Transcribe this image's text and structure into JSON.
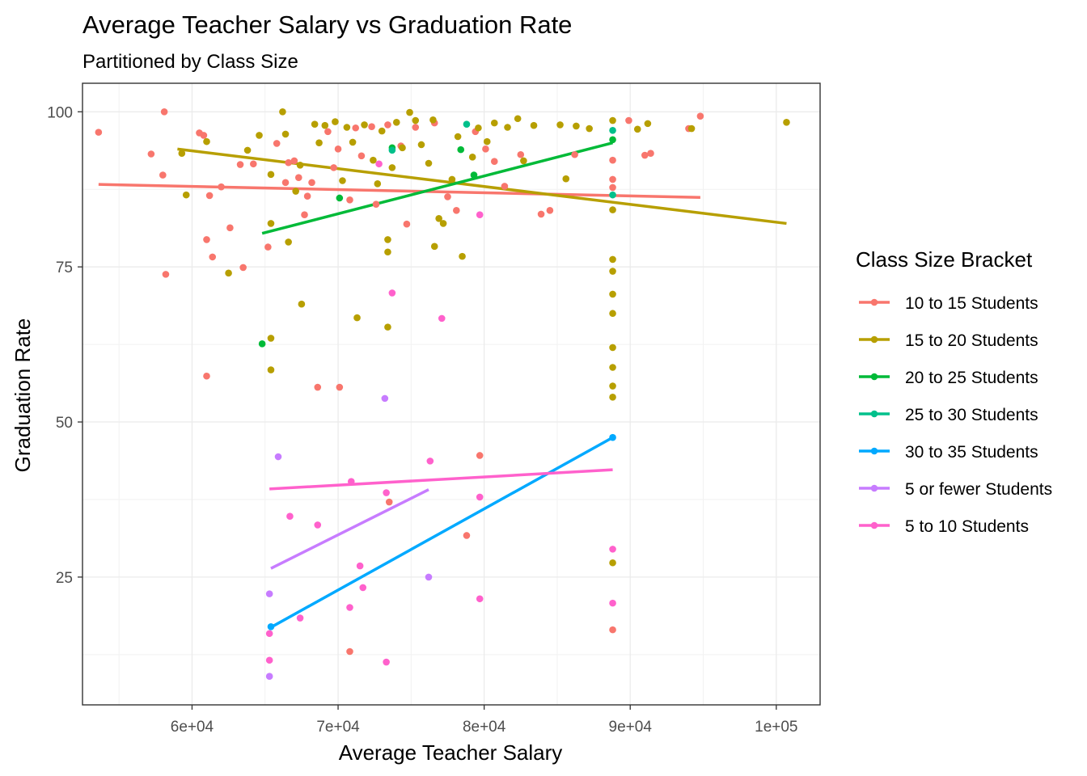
{
  "chart_data": {
    "type": "scatter",
    "title": "Average Teacher Salary vs Graduation Rate",
    "subtitle": "Partitioned by Class Size",
    "xlabel": "Average Teacher Salary",
    "ylabel": "Graduation Rate",
    "xlim": [
      52500,
      103000
    ],
    "ylim": [
      4.4,
      104.6
    ],
    "x_ticks": [
      60000,
      70000,
      80000,
      90000,
      100000
    ],
    "x_tick_labels": [
      "6e+04",
      "7e+04",
      "8e+04",
      "9e+04",
      "1e+05"
    ],
    "y_ticks": [
      25,
      50,
      75,
      100
    ],
    "y_tick_labels": [
      "25",
      "50",
      "75",
      "100"
    ],
    "grid": true,
    "legend": {
      "title": "Class Size Bracket",
      "position": "right"
    },
    "series": [
      {
        "name": "10 to 15 Students",
        "color": "#f8766d",
        "points": [
          [
            53600,
            96.7
          ],
          [
            57200,
            93.2
          ],
          [
            58100,
            100
          ],
          [
            58200,
            73.8
          ],
          [
            58000,
            89.8
          ],
          [
            60500,
            96.6
          ],
          [
            60800,
            96.2
          ],
          [
            61200,
            86.5
          ],
          [
            61400,
            76.6
          ],
          [
            61000,
            57.4
          ],
          [
            61000,
            79.4
          ],
          [
            62000,
            87.9
          ],
          [
            62600,
            81.3
          ],
          [
            63300,
            91.5
          ],
          [
            63500,
            74.9
          ],
          [
            64200,
            91.6
          ],
          [
            65200,
            78.2
          ],
          [
            65800,
            94.9
          ],
          [
            66400,
            88.6
          ],
          [
            66600,
            91.8
          ],
          [
            67000,
            92.1
          ],
          [
            67300,
            89.4
          ],
          [
            67700,
            83.4
          ],
          [
            67900,
            86.4
          ],
          [
            68200,
            88.6
          ],
          [
            68600,
            55.6
          ],
          [
            69300,
            96.8
          ],
          [
            69700,
            91.0
          ],
          [
            70000,
            94.0
          ],
          [
            70100,
            55.6
          ],
          [
            70800,
            85.8
          ],
          [
            70800,
            13.0
          ],
          [
            71200,
            97.4
          ],
          [
            71600,
            92.9
          ],
          [
            72300,
            97.6
          ],
          [
            72600,
            85.1
          ],
          [
            73400,
            97.9
          ],
          [
            73500,
            37.1
          ],
          [
            74300,
            94.5
          ],
          [
            74700,
            81.9
          ],
          [
            75300,
            97.5
          ],
          [
            76600,
            98.2
          ],
          [
            77500,
            86.3
          ],
          [
            78100,
            84.1
          ],
          [
            78800,
            31.7
          ],
          [
            79400,
            96.8
          ],
          [
            79700,
            44.6
          ],
          [
            80100,
            94.0
          ],
          [
            80700,
            92.0
          ],
          [
            81400,
            88.0
          ],
          [
            82500,
            93.1
          ],
          [
            83900,
            83.5
          ],
          [
            84500,
            84.1
          ],
          [
            86200,
            93.1
          ],
          [
            88800,
            92.2
          ],
          [
            88800,
            89.1
          ],
          [
            88800,
            87.8
          ],
          [
            88800,
            16.5
          ],
          [
            89900,
            98.6
          ],
          [
            91000,
            93.0
          ],
          [
            91400,
            93.3
          ],
          [
            94000,
            97.3
          ],
          [
            94800,
            99.3
          ]
        ],
        "trend": [
          [
            53600,
            88.3
          ],
          [
            94800,
            86.2
          ]
        ]
      },
      {
        "name": "15 to 20 Students",
        "color": "#b79f00",
        "points": [
          [
            59300,
            93.3
          ],
          [
            59600,
            86.6
          ],
          [
            61000,
            95.2
          ],
          [
            62500,
            74.0
          ],
          [
            63800,
            93.8
          ],
          [
            64600,
            96.2
          ],
          [
            65400,
            89.9
          ],
          [
            65400,
            82.0
          ],
          [
            65400,
            63.5
          ],
          [
            65400,
            58.4
          ],
          [
            66200,
            100
          ],
          [
            66400,
            96.4
          ],
          [
            66600,
            79.0
          ],
          [
            67100,
            87.2
          ],
          [
            67400,
            91.4
          ],
          [
            67500,
            69.0
          ],
          [
            68400,
            98.0
          ],
          [
            68700,
            95.0
          ],
          [
            69100,
            97.8
          ],
          [
            69800,
            98.4
          ],
          [
            70300,
            88.9
          ],
          [
            70600,
            97.5
          ],
          [
            71000,
            95.1
          ],
          [
            71300,
            66.8
          ],
          [
            71800,
            97.9
          ],
          [
            72400,
            92.2
          ],
          [
            72700,
            88.4
          ],
          [
            73000,
            96.9
          ],
          [
            73400,
            79.4
          ],
          [
            73400,
            77.4
          ],
          [
            73400,
            65.3
          ],
          [
            73700,
            91.0
          ],
          [
            74000,
            98.3
          ],
          [
            74400,
            94.2
          ],
          [
            74900,
            99.9
          ],
          [
            75300,
            98.6
          ],
          [
            75700,
            94.7
          ],
          [
            76200,
            91.7
          ],
          [
            76500,
            98.7
          ],
          [
            76600,
            78.3
          ],
          [
            76900,
            82.8
          ],
          [
            77200,
            82.0
          ],
          [
            77800,
            89.1
          ],
          [
            78200,
            96.0
          ],
          [
            78500,
            76.7
          ],
          [
            79200,
            92.7
          ],
          [
            79600,
            97.4
          ],
          [
            80200,
            95.2
          ],
          [
            80700,
            98.2
          ],
          [
            81600,
            97.5
          ],
          [
            82300,
            98.9
          ],
          [
            82700,
            92.1
          ],
          [
            83400,
            97.8
          ],
          [
            85200,
            97.9
          ],
          [
            85600,
            89.2
          ],
          [
            86300,
            97.7
          ],
          [
            87200,
            97.3
          ],
          [
            88800,
            98.6
          ],
          [
            88800,
            84.2
          ],
          [
            88800,
            76.2
          ],
          [
            88800,
            74.3
          ],
          [
            88800,
            70.6
          ],
          [
            88800,
            67.5
          ],
          [
            88800,
            62.0
          ],
          [
            88800,
            58.8
          ],
          [
            88800,
            55.8
          ],
          [
            88800,
            54.0
          ],
          [
            88800,
            27.3
          ],
          [
            90500,
            97.2
          ],
          [
            91200,
            98.1
          ],
          [
            94200,
            97.3
          ],
          [
            100700,
            98.3
          ]
        ],
        "trend": [
          [
            59000,
            94.0
          ],
          [
            100700,
            82.0
          ]
        ]
      },
      {
        "name": "20 to 25 Students",
        "color": "#00ba38",
        "points": [
          [
            64800,
            62.6
          ],
          [
            70100,
            86.1
          ],
          [
            73700,
            94.2
          ],
          [
            78400,
            93.9
          ],
          [
            79300,
            89.8
          ],
          [
            88800,
            95.5
          ]
        ],
        "trend": [
          [
            64800,
            80.4
          ],
          [
            88800,
            95.0
          ]
        ]
      },
      {
        "name": "25 to 30 Students",
        "color": "#00c08b",
        "points": [
          [
            73700,
            93.8
          ],
          [
            78800,
            98.0
          ],
          [
            88800,
            97.0
          ],
          [
            88800,
            86.6
          ]
        ],
        "trend": []
      },
      {
        "name": "30 to 35 Students",
        "color": "#00a9ff",
        "points": [
          [
            65400,
            17.0
          ],
          [
            88800,
            47.5
          ]
        ],
        "trend": [
          [
            65400,
            16.9
          ],
          [
            88800,
            47.5
          ]
        ]
      },
      {
        "name": "5 or fewer Students",
        "color": "#c77cff",
        "points": [
          [
            65300,
            22.3
          ],
          [
            65300,
            9.0
          ],
          [
            65900,
            44.4
          ],
          [
            73200,
            53.8
          ],
          [
            76200,
            25.0
          ]
        ],
        "trend": [
          [
            65400,
            26.4
          ],
          [
            76200,
            39.1
          ]
        ]
      },
      {
        "name": "5 to 10 Students",
        "color": "#ff61cc",
        "points": [
          [
            65300,
            15.9
          ],
          [
            65300,
            11.6
          ],
          [
            66700,
            34.8
          ],
          [
            67400,
            18.4
          ],
          [
            68600,
            33.4
          ],
          [
            70900,
            40.4
          ],
          [
            70800,
            20.1
          ],
          [
            71500,
            26.8
          ],
          [
            71700,
            23.3
          ],
          [
            72800,
            91.6
          ],
          [
            73300,
            38.6
          ],
          [
            73300,
            11.3
          ],
          [
            73700,
            70.8
          ],
          [
            76300,
            43.7
          ],
          [
            77100,
            66.7
          ],
          [
            79700,
            83.4
          ],
          [
            79700,
            37.9
          ],
          [
            79700,
            21.5
          ],
          [
            88800,
            29.5
          ],
          [
            88800,
            20.8
          ]
        ],
        "trend": [
          [
            65300,
            39.2
          ],
          [
            88800,
            42.3
          ]
        ]
      }
    ]
  }
}
